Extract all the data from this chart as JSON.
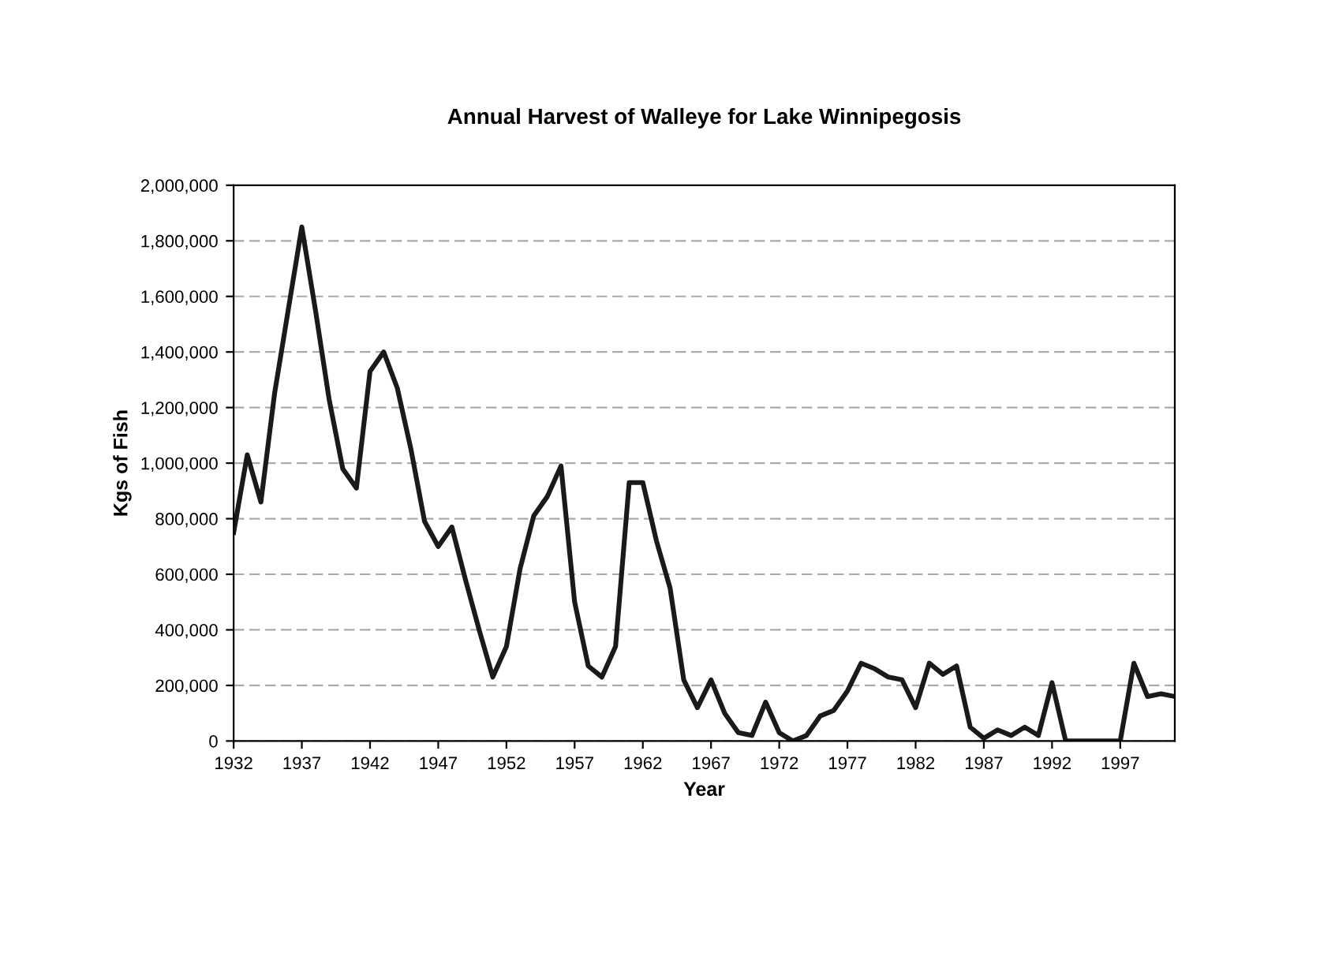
{
  "chart_data": {
    "type": "line",
    "title": "Annual Harvest of Walleye for Lake Winnipegosis",
    "xlabel": "Year",
    "ylabel": "Kgs of Fish",
    "x": [
      1932,
      1933,
      1934,
      1935,
      1936,
      1937,
      1938,
      1939,
      1940,
      1941,
      1942,
      1943,
      1944,
      1945,
      1946,
      1947,
      1948,
      1949,
      1950,
      1951,
      1952,
      1953,
      1954,
      1955,
      1956,
      1957,
      1958,
      1959,
      1960,
      1961,
      1962,
      1963,
      1964,
      1965,
      1966,
      1967,
      1968,
      1969,
      1970,
      1971,
      1972,
      1973,
      1974,
      1975,
      1976,
      1977,
      1978,
      1979,
      1980,
      1981,
      1982,
      1983,
      1984,
      1985,
      1986,
      1987,
      1988,
      1989,
      1990,
      1991,
      1992,
      1993,
      1994,
      1995,
      1996,
      1997,
      1998,
      1999,
      2000,
      2001
    ],
    "series": [
      {
        "color": "#1a1a1a",
        "values": [
          750000,
          1030000,
          860000,
          1250000,
          1550000,
          1850000,
          1550000,
          1230000,
          980000,
          910000,
          1330000,
          1400000,
          1270000,
          1050000,
          790000,
          700000,
          770000,
          580000,
          400000,
          230000,
          340000,
          620000,
          810000,
          880000,
          990000,
          500000,
          270000,
          230000,
          340000,
          930000,
          930000,
          720000,
          550000,
          220000,
          120000,
          220000,
          100000,
          30000,
          20000,
          140000,
          30000,
          0,
          20000,
          90000,
          110000,
          180000,
          280000,
          260000,
          230000,
          220000,
          120000,
          280000,
          240000,
          270000,
          50000,
          10000,
          40000,
          20000,
          50000,
          20000,
          210000,
          0,
          0,
          0,
          0,
          0,
          280000,
          160000,
          170000,
          160000
        ]
      }
    ],
    "xlim": [
      1932,
      2001
    ],
    "xticks": [
      1932,
      1937,
      1942,
      1947,
      1952,
      1957,
      1962,
      1967,
      1972,
      1977,
      1982,
      1987,
      1992,
      1997
    ],
    "ylim": [
      0,
      2000000
    ],
    "yticks": [
      {
        "value": 0,
        "label": "0"
      },
      {
        "value": 200000,
        "label": "200,000"
      },
      {
        "value": 400000,
        "label": "400,000"
      },
      {
        "value": 600000,
        "label": "600,000"
      },
      {
        "value": 800000,
        "label": "800,000"
      },
      {
        "value": 1000000,
        "label": "1,000,000"
      },
      {
        "value": 1200000,
        "label": "1,200,000"
      },
      {
        "value": 1400000,
        "label": "1,400,000"
      },
      {
        "value": 1600000,
        "label": "1,600,000"
      },
      {
        "value": 1800000,
        "label": "1,800,000"
      },
      {
        "value": 2000000,
        "label": "2,000,000"
      }
    ],
    "grid": "y",
    "line_style": "solid"
  }
}
